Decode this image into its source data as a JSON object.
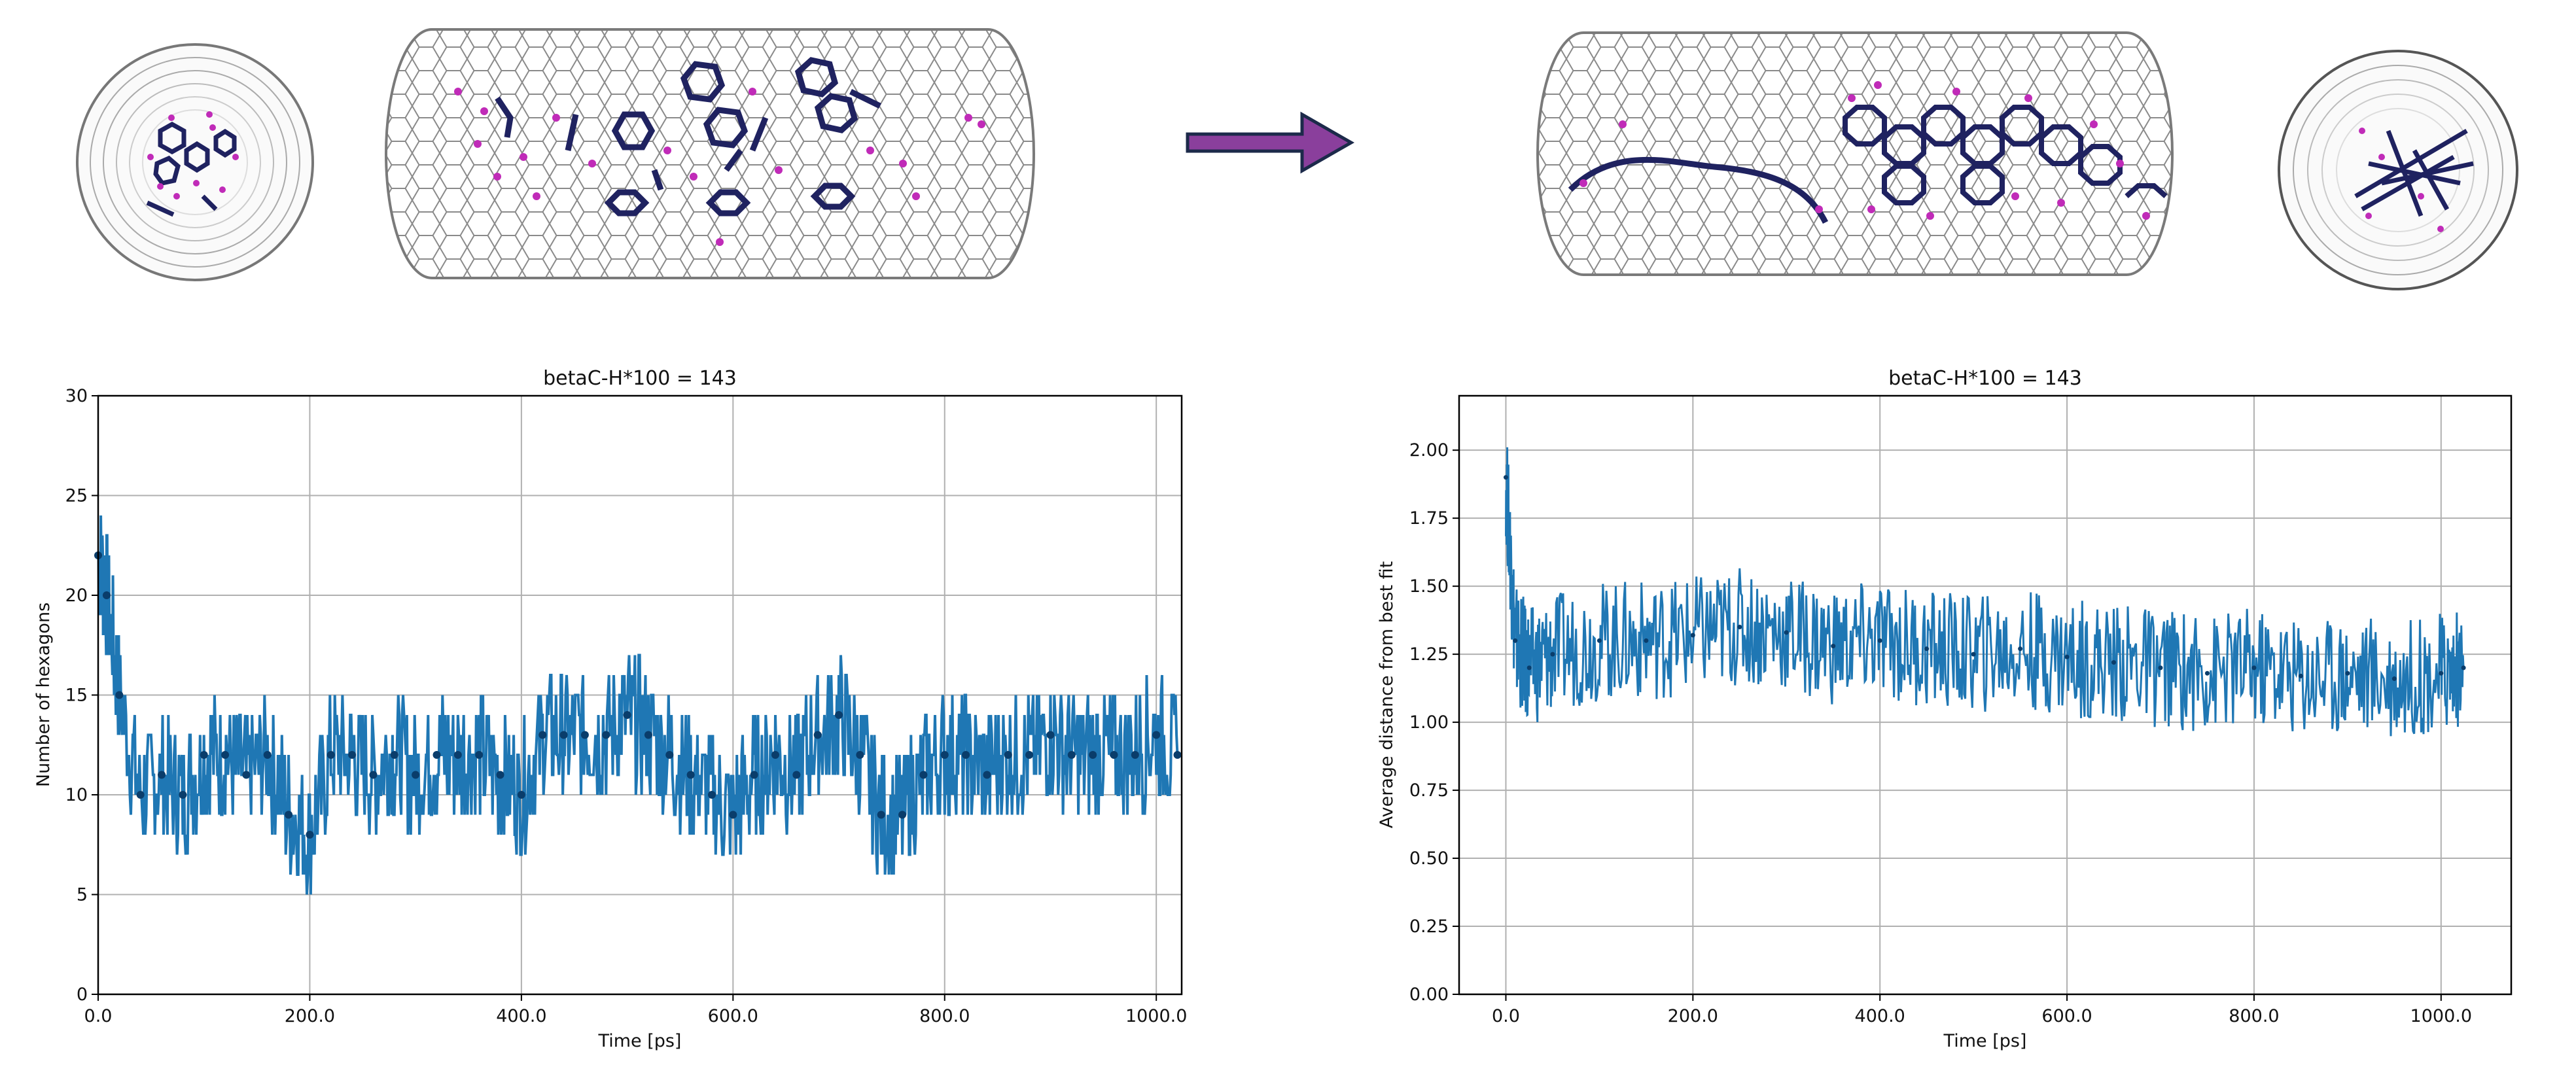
{
  "figure": {
    "arrow_color": "#8a3f9c",
    "arrow_stroke": "#1c2a4a",
    "tube_color": "#7a7a7a",
    "molecule_color": "#1f2260",
    "atom_color": "#c02bb8"
  },
  "chart_data": [
    {
      "type": "line",
      "title": "betaC-H*100 = 143",
      "xlabel": "Time [ps]",
      "ylabel": "Number of hexagons",
      "xlim": [
        0,
        1024
      ],
      "ylim": [
        0,
        30
      ],
      "xticks": [
        0,
        200,
        400,
        600,
        800,
        1000
      ],
      "xtick_labels": [
        "0.0",
        "200.0",
        "400.0",
        "600.0",
        "800.0",
        "1000.0"
      ],
      "yticks": [
        0,
        5,
        10,
        15,
        20,
        25,
        30
      ],
      "ytick_labels": [
        "0",
        "5",
        "10",
        "15",
        "20",
        "25",
        "30"
      ],
      "grid": true,
      "marker": "dot",
      "color": "#1f77b4",
      "series": [
        {
          "name": "hexagons",
          "x": [
            0,
            8,
            20,
            40,
            60,
            80,
            100,
            120,
            140,
            160,
            180,
            200,
            220,
            240,
            260,
            280,
            300,
            320,
            340,
            360,
            380,
            400,
            420,
            440,
            460,
            480,
            500,
            520,
            540,
            560,
            580,
            600,
            620,
            640,
            660,
            680,
            700,
            720,
            740,
            760,
            780,
            800,
            820,
            840,
            860,
            880,
            900,
            920,
            940,
            960,
            980,
            1000,
            1020
          ],
          "values": [
            22,
            20,
            15,
            10,
            11,
            10,
            12,
            12,
            11,
            12,
            9,
            8,
            12,
            12,
            11,
            12,
            11,
            12,
            12,
            12,
            11,
            10,
            13,
            13,
            13,
            13,
            14,
            13,
            12,
            11,
            10,
            9,
            11,
            12,
            11,
            13,
            14,
            12,
            9,
            9,
            11,
            12,
            12,
            11,
            12,
            12,
            13,
            12,
            12,
            12,
            12,
            13,
            12
          ]
        }
      ]
    },
    {
      "type": "line",
      "title": "betaC-H*100 = 143",
      "xlabel": "Time [ps]",
      "ylabel": "Average distance from best fit",
      "xlim": [
        -50,
        1075
      ],
      "ylim": [
        0,
        2.2
      ],
      "xticks": [
        0,
        200,
        400,
        600,
        800,
        1000
      ],
      "xtick_labels": [
        "0.0",
        "200.0",
        "400.0",
        "600.0",
        "800.0",
        "1000.0"
      ],
      "yticks": [
        0,
        0.25,
        0.5,
        0.75,
        1.0,
        1.25,
        1.5,
        1.75,
        2.0
      ],
      "ytick_labels": [
        "0.00",
        "0.25",
        "0.50",
        "0.75",
        "1.00",
        "1.25",
        "1.50",
        "1.75",
        "2.00"
      ],
      "grid": true,
      "marker": "none",
      "color": "#1f77b4",
      "series": [
        {
          "name": "avg distance",
          "x": [
            0,
            10,
            25,
            50,
            100,
            150,
            200,
            250,
            300,
            350,
            400,
            450,
            500,
            550,
            600,
            650,
            700,
            750,
            800,
            850,
            900,
            950,
            1000,
            1024
          ],
          "values": [
            1.9,
            1.3,
            1.2,
            1.25,
            1.3,
            1.3,
            1.32,
            1.35,
            1.33,
            1.28,
            1.3,
            1.27,
            1.25,
            1.27,
            1.24,
            1.22,
            1.2,
            1.18,
            1.2,
            1.17,
            1.18,
            1.16,
            1.18,
            1.2
          ]
        }
      ]
    }
  ]
}
